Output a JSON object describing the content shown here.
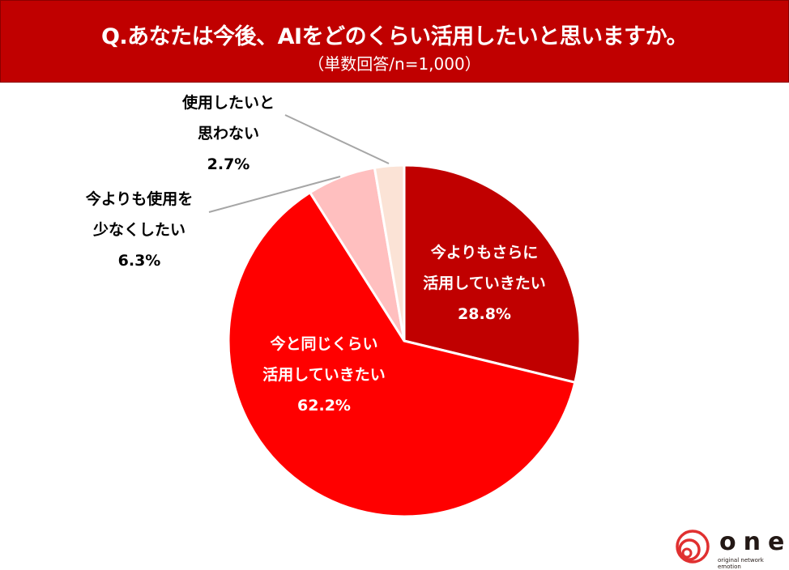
{
  "chart_data": {
    "type": "pie",
    "title": "Q.あなたは今後、AIをどのくらい活用したいと思いますか。",
    "subtitle": "（単数回答/n=1,000）",
    "start": "top",
    "direction": "clockwise",
    "slices": [
      {
        "label_lines": [
          "今よりもさらに",
          "活用していきたい"
        ],
        "value": 28.8,
        "value_label": "28.8%",
        "color": "#c00000",
        "text_color": "#ffffff"
      },
      {
        "label_lines": [
          "今と同じくらい",
          "活用していきたい"
        ],
        "value": 62.2,
        "value_label": "62.2%",
        "color": "#ff0000",
        "text_color": "#ffffff"
      },
      {
        "label_lines": [
          "今よりも使用を",
          "少なくしたい"
        ],
        "value": 6.3,
        "value_label": "6.3%",
        "color": "#ffbfbf",
        "text_color": "#000000"
      },
      {
        "label_lines": [
          "使用したいと",
          "思わない"
        ],
        "value": 2.7,
        "value_label": "2.7%",
        "color": "#fbe3d6",
        "text_color": "#000000"
      }
    ]
  },
  "logo": {
    "text": "one",
    "tagline": "original network emotion",
    "color": "#e03030"
  }
}
